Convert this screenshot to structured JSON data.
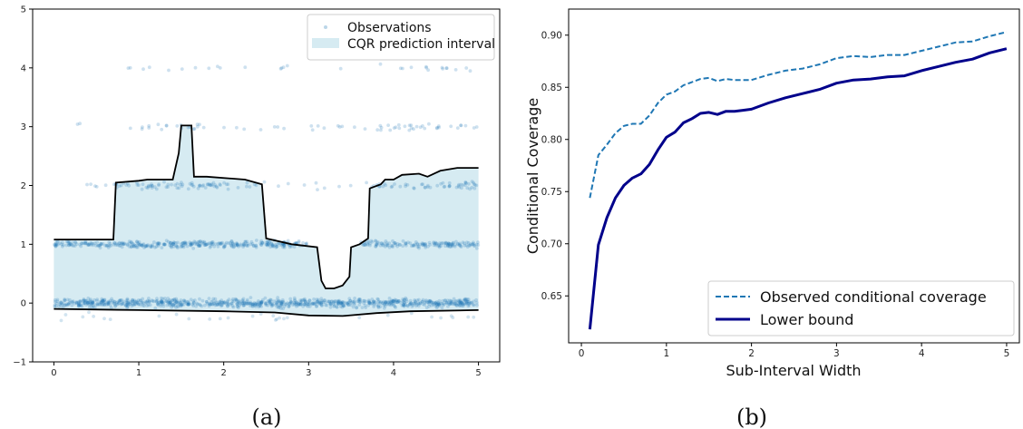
{
  "captions": {
    "a": "(a)",
    "b": "(b)"
  },
  "chart_data": [
    {
      "type": "scatter",
      "panel": "a",
      "xlim": [
        -0.25,
        5.25
      ],
      "ylim": [
        -1,
        5
      ],
      "xticks": [
        0,
        1,
        2,
        3,
        4,
        5
      ],
      "yticks": [
        -1,
        0,
        1,
        2,
        3,
        4,
        5
      ],
      "grid": false,
      "legend_position": "top-right",
      "colors": {
        "points": "#1f77b4",
        "band": "#add8e6",
        "bounds": "#000000"
      },
      "legend": {
        "points_label": "Observations",
        "band_label": "CQR prediction interval"
      },
      "point_levels": [
        {
          "y": 0,
          "x_range": [
            0,
            5
          ],
          "density": "very high"
        },
        {
          "y": 1,
          "x_range": [
            0,
            5
          ],
          "density": "high",
          "gap_x": [
            3.0,
            3.6
          ]
        },
        {
          "y": 2,
          "x_range": [
            0.1,
            5
          ],
          "density": "medium",
          "dense_x": [
            [
              0.7,
              2.4
            ],
            [
              3.8,
              5
            ]
          ]
        },
        {
          "y": 3,
          "x_range": [
            0.2,
            5
          ],
          "density": "low",
          "dense_x": [
            [
              1.0,
              1.8
            ],
            [
              3.8,
              5
            ]
          ]
        },
        {
          "y": 4,
          "x_range": [
            0.8,
            5
          ],
          "density": "very low"
        }
      ],
      "upper_bound": [
        [
          0,
          1.08
        ],
        [
          0.7,
          1.08
        ],
        [
          0.73,
          2.05
        ],
        [
          1.0,
          2.08
        ],
        [
          1.1,
          2.1
        ],
        [
          1.4,
          2.1
        ],
        [
          1.47,
          2.55
        ],
        [
          1.5,
          3.02
        ],
        [
          1.62,
          3.02
        ],
        [
          1.65,
          2.15
        ],
        [
          1.8,
          2.15
        ],
        [
          2.25,
          2.1
        ],
        [
          2.45,
          2.02
        ],
        [
          2.5,
          1.1
        ],
        [
          2.8,
          1.0
        ],
        [
          3.1,
          0.95
        ],
        [
          3.15,
          0.38
        ],
        [
          3.2,
          0.25
        ],
        [
          3.3,
          0.25
        ],
        [
          3.4,
          0.3
        ],
        [
          3.48,
          0.45
        ],
        [
          3.5,
          0.95
        ],
        [
          3.6,
          1.0
        ],
        [
          3.7,
          1.1
        ],
        [
          3.72,
          1.95
        ],
        [
          3.85,
          2.02
        ],
        [
          3.9,
          2.1
        ],
        [
          4.0,
          2.1
        ],
        [
          4.1,
          2.18
        ],
        [
          4.3,
          2.2
        ],
        [
          4.4,
          2.15
        ],
        [
          4.55,
          2.25
        ],
        [
          4.75,
          2.3
        ],
        [
          5.0,
          2.3
        ]
      ],
      "lower_bound": [
        [
          0,
          -0.1
        ],
        [
          1.0,
          -0.12
        ],
        [
          2.0,
          -0.14
        ],
        [
          2.6,
          -0.16
        ],
        [
          3.0,
          -0.21
        ],
        [
          3.4,
          -0.22
        ],
        [
          3.8,
          -0.17
        ],
        [
          4.2,
          -0.14
        ],
        [
          5.0,
          -0.12
        ]
      ]
    },
    {
      "type": "line",
      "panel": "b",
      "xlabel": "Sub-Interval Width",
      "ylabel": "Conditional Coverage",
      "xlim": [
        -0.15,
        5.15
      ],
      "ylim": [
        0.605,
        0.925
      ],
      "xticks": [
        0,
        1,
        2,
        3,
        4,
        5
      ],
      "yticks": [
        0.65,
        0.7,
        0.75,
        0.8,
        0.85,
        0.9
      ],
      "grid": false,
      "legend_position": "bottom-right",
      "x": [
        0.1,
        0.2,
        0.3,
        0.4,
        0.5,
        0.6,
        0.7,
        0.8,
        0.9,
        1.0,
        1.1,
        1.2,
        1.3,
        1.4,
        1.5,
        1.6,
        1.7,
        1.8,
        1.9,
        2.0,
        2.2,
        2.4,
        2.6,
        2.8,
        3.0,
        3.2,
        3.4,
        3.6,
        3.8,
        4.0,
        4.2,
        4.4,
        4.6,
        4.8,
        5.0
      ],
      "series": [
        {
          "name": "Observed conditional coverage",
          "style": "dashed",
          "color": "#1f77b4",
          "values": [
            0.744,
            0.785,
            0.795,
            0.806,
            0.813,
            0.815,
            0.815,
            0.823,
            0.835,
            0.843,
            0.846,
            0.852,
            0.855,
            0.858,
            0.859,
            0.856,
            0.858,
            0.857,
            0.857,
            0.857,
            0.862,
            0.866,
            0.868,
            0.872,
            0.878,
            0.88,
            0.879,
            0.881,
            0.881,
            0.885,
            0.889,
            0.893,
            0.894,
            0.899,
            0.903
          ]
        },
        {
          "name": "Lower bound",
          "style": "solid",
          "color": "#00008b",
          "values": [
            0.618,
            0.699,
            0.725,
            0.744,
            0.756,
            0.763,
            0.767,
            0.776,
            0.79,
            0.802,
            0.807,
            0.816,
            0.82,
            0.825,
            0.826,
            0.824,
            0.827,
            0.827,
            0.828,
            0.829,
            0.835,
            0.84,
            0.844,
            0.848,
            0.854,
            0.857,
            0.858,
            0.86,
            0.861,
            0.866,
            0.87,
            0.874,
            0.877,
            0.883,
            0.887
          ]
        }
      ]
    }
  ]
}
